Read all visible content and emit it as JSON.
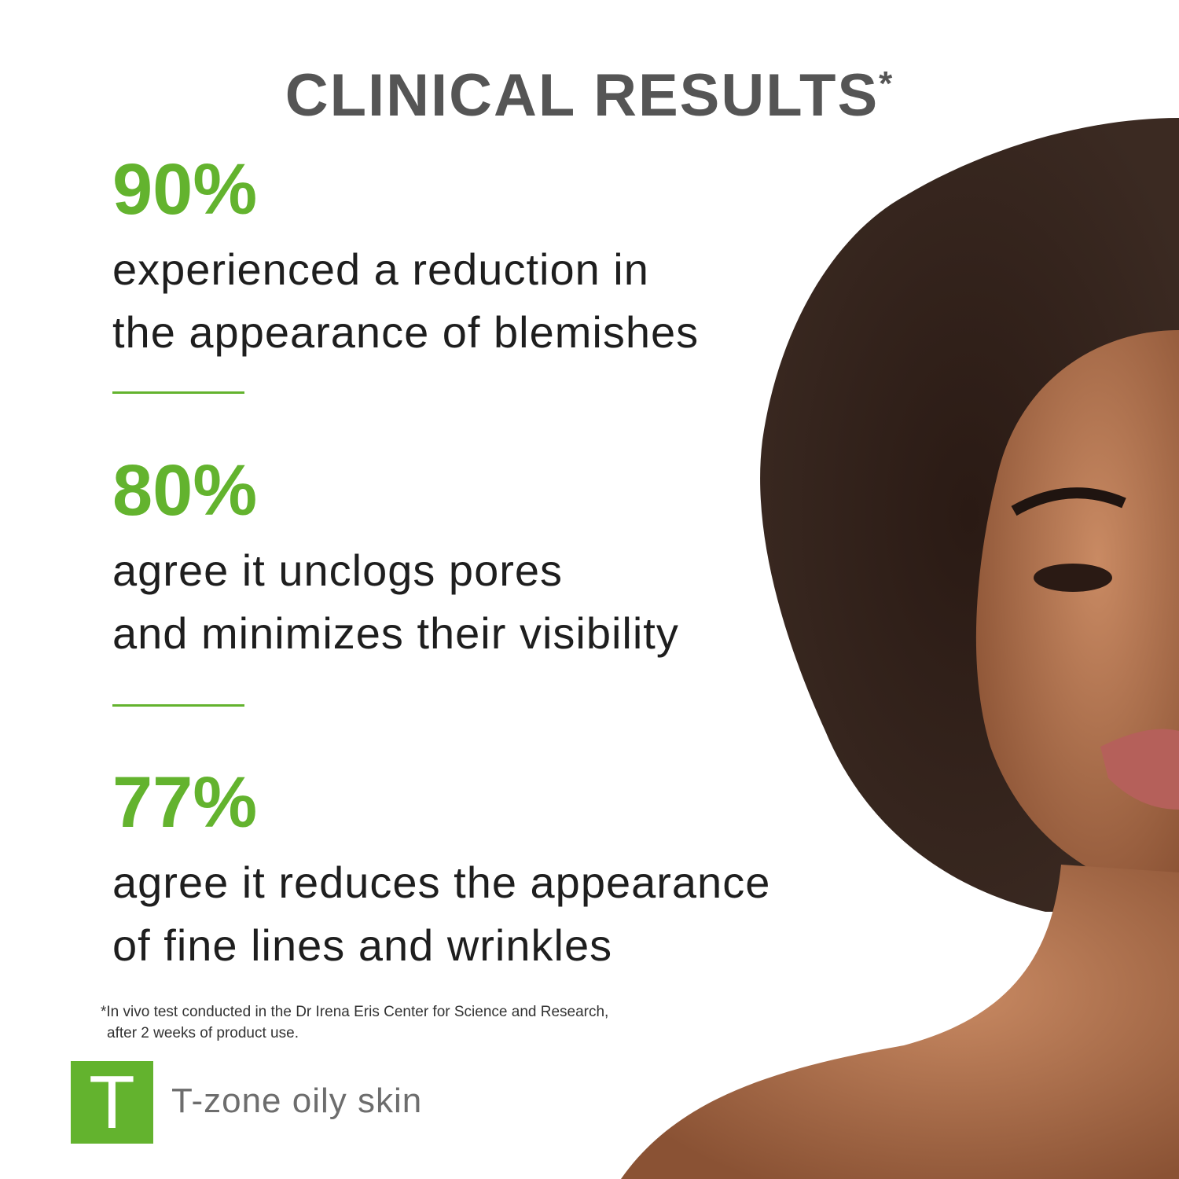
{
  "title": "CLINICAL RESULTS",
  "title_mark": "*",
  "stats": [
    {
      "value": "90%",
      "lines": [
        "experienced a reduction in",
        "the appearance of blemishes"
      ]
    },
    {
      "value": "80%",
      "lines": [
        "agree it unclogs pores",
        "and minimizes their visibility"
      ]
    },
    {
      "value": "77%",
      "lines": [
        "agree it reduces the appearance",
        "of fine lines and wrinkles"
      ]
    }
  ],
  "footnote": [
    "*In vivo test conducted in the Dr Irena Eris Center for Science and Research,",
    "after 2 weeks of product use."
  ],
  "badge": {
    "letter": "T",
    "label": "T-zone oily skin"
  },
  "colors": {
    "accent": "#63b32e",
    "title": "#555555",
    "text": "#1e1e1e"
  }
}
